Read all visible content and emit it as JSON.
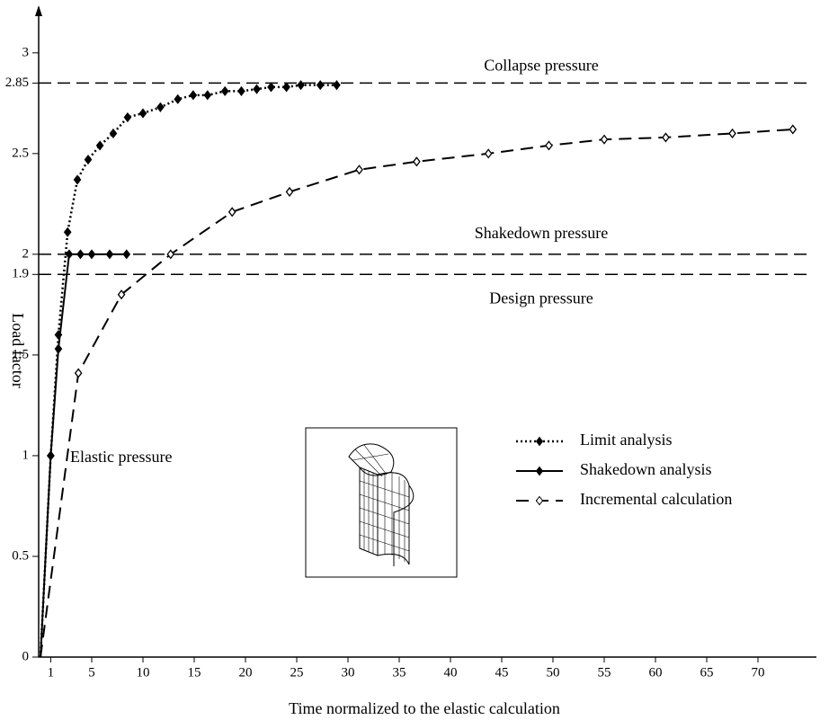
{
  "chart_data": {
    "type": "line",
    "x_label": "Time normalized to the elastic calculation",
    "y_label": "Load factor",
    "xlim": [
      0,
      75
    ],
    "ylim": [
      0,
      3.2
    ],
    "xticks": [
      1,
      5,
      10,
      15,
      20,
      25,
      30,
      35,
      40,
      45,
      50,
      55,
      60,
      65,
      70
    ],
    "yticks": [
      0,
      0.5,
      1,
      1.5,
      1.9,
      2,
      2.5,
      2.85,
      3
    ],
    "reference_lines": [
      {
        "value": 2.85,
        "label": "Collapse pressure"
      },
      {
        "value": 2,
        "label": "Shakedown pressure"
      },
      {
        "value": 1.9,
        "label": "Design pressure"
      }
    ],
    "annotations": [
      "Elastic pressure"
    ],
    "series": [
      {
        "name": "Limit analysis",
        "color": "#000000",
        "dash": "dotted",
        "marker": "filled",
        "x": [
          0,
          1,
          1.75,
          2.65,
          3.6,
          4.65,
          5.8,
          7.1,
          8.5,
          10,
          11.7,
          13.4,
          14.9,
          16.3,
          18,
          19.6,
          21.1,
          22.5,
          24,
          25.4,
          27.3,
          28.9
        ],
        "values": [
          0,
          1,
          1.6,
          2.11,
          2.37,
          2.47,
          2.54,
          2.6,
          2.68,
          2.7,
          2.73,
          2.77,
          2.79,
          2.79,
          2.81,
          2.81,
          2.82,
          2.83,
          2.83,
          2.84,
          2.84,
          2.84
        ]
      },
      {
        "name": "Shakedown analysis",
        "color": "#000000",
        "dash": "solid",
        "marker": "filled",
        "x": [
          0,
          1,
          1.75,
          2.8,
          3.9,
          5,
          6.75,
          8.4
        ],
        "values": [
          0,
          1,
          1.53,
          2,
          2,
          2,
          2,
          2
        ]
      },
      {
        "name": "Incremental calculation",
        "color": "#000000",
        "dash": "dashed",
        "marker": "open",
        "x": [
          0,
          3.7,
          7.9,
          12.7,
          18.7,
          24.3,
          31.1,
          36.7,
          43.7,
          49.6,
          55,
          61,
          67.5,
          73.4
        ],
        "values": [
          0,
          1.41,
          1.8,
          2,
          2.21,
          2.31,
          2.42,
          2.46,
          2.5,
          2.54,
          2.57,
          2.58,
          2.6,
          2.62
        ]
      }
    ]
  }
}
